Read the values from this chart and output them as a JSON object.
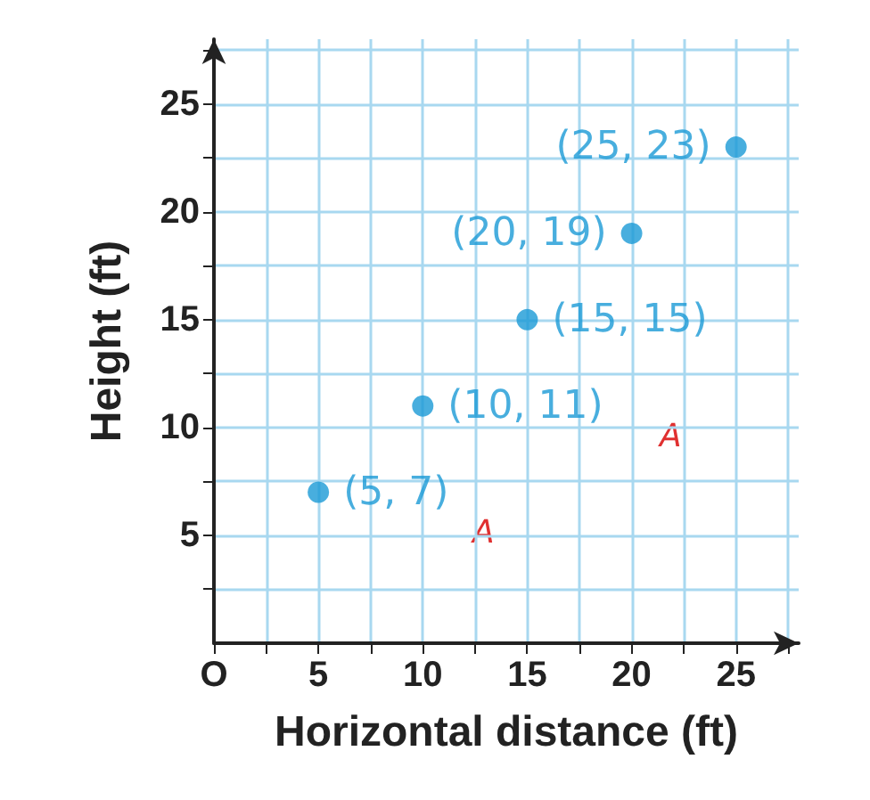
{
  "chart_data": {
    "type": "scatter",
    "xlabel": "Horizontal distance (ft)",
    "ylabel": "Height (ft)",
    "x": [
      5,
      10,
      15,
      20,
      25
    ],
    "series": [
      {
        "color": "#1a9ad6",
        "values": [
          7,
          11,
          15,
          19,
          23
        ],
        "value_labels": [
          "(5, 7)",
          "(10, 11)",
          "(15, 15)",
          "(20, 19)",
          "(25, 23)"
        ]
      }
    ],
    "xlim": [
      0,
      28
    ],
    "ylim": [
      0,
      28
    ],
    "xticks": [
      {
        "value": 0,
        "label": "O"
      },
      {
        "value": 2.5,
        "label": null
      },
      5,
      {
        "value": 7.5,
        "label": null
      },
      10,
      {
        "value": 12.5,
        "label": null
      },
      15,
      {
        "value": 17.5,
        "label": null
      },
      20,
      {
        "value": 22.5,
        "label": null
      },
      25,
      {
        "value": 27.5,
        "label": null
      }
    ],
    "yticks": [
      {
        "value": 2.5,
        "label": null
      },
      5,
      {
        "value": 7.5,
        "label": null
      },
      10,
      {
        "value": 12.5,
        "label": null
      },
      15,
      {
        "value": 17.5,
        "label": null
      },
      20,
      {
        "value": 22.5,
        "label": null
      },
      25,
      {
        "value": 27.5,
        "label": null
      }
    ],
    "grid": true,
    "marker": "circle",
    "annotations": [
      "A",
      "A"
    ]
  }
}
